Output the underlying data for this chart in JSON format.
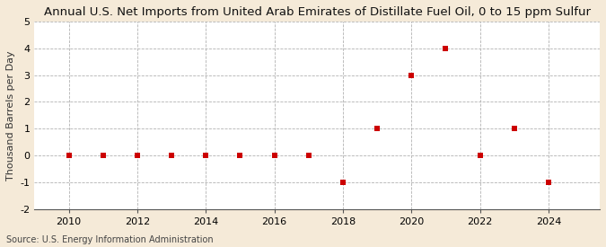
{
  "title": "Annual U.S. Net Imports from United Arab Emirates of Distillate Fuel Oil, 0 to 15 ppm Sulfur",
  "ylabel": "Thousand Barrels per Day",
  "source": "Source: U.S. Energy Information Administration",
  "background_color": "#f5ead8",
  "plot_background_color": "#ffffff",
  "marker_color": "#cc0000",
  "grid_color": "#aaaaaa",
  "years": [
    2010,
    2011,
    2012,
    2013,
    2014,
    2015,
    2016,
    2017,
    2018,
    2019,
    2020,
    2021,
    2022,
    2023,
    2024
  ],
  "values": [
    0,
    0,
    0,
    0,
    0,
    0,
    0,
    0,
    -1,
    1,
    3,
    4,
    0,
    1,
    -1
  ],
  "ylim": [
    -2,
    5
  ],
  "yticks": [
    -2,
    -1,
    0,
    1,
    2,
    3,
    4,
    5
  ],
  "xlim": [
    2009,
    2025.5
  ],
  "xticks": [
    2010,
    2012,
    2014,
    2016,
    2018,
    2020,
    2022,
    2024
  ],
  "title_fontsize": 9.5,
  "ylabel_fontsize": 8,
  "tick_fontsize": 8,
  "source_fontsize": 7
}
